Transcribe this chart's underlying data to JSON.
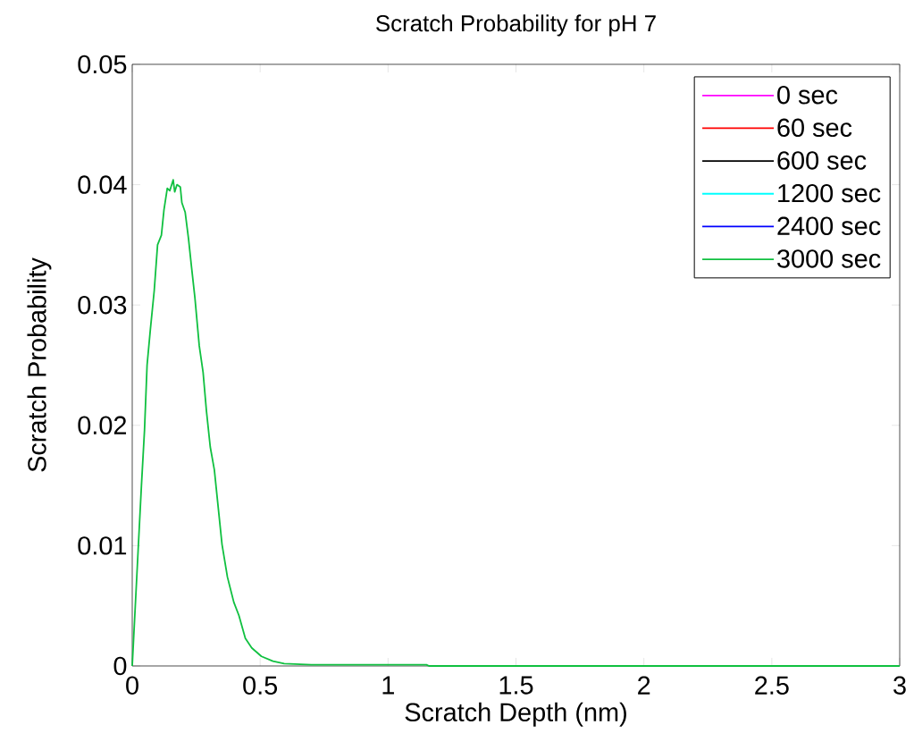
{
  "chart_data": {
    "type": "line",
    "title": "Scratch Probability for pH 7",
    "xlabel": "Scratch Depth (nm)",
    "ylabel": "Scratch Probability",
    "xlim": [
      0,
      3
    ],
    "ylim": [
      0,
      0.05
    ],
    "xticks": [
      0,
      0.5,
      1,
      1.5,
      2,
      2.5,
      3
    ],
    "yticks": [
      0,
      0.01,
      0.02,
      0.03,
      0.04,
      0.05
    ],
    "legend": "top right",
    "grid": false,
    "marker": "none",
    "line_style": "solid",
    "x": [
      0,
      0.023,
      0.036,
      0.048,
      0.058,
      0.071,
      0.086,
      0.099,
      0.114,
      0.124,
      0.137,
      0.147,
      0.16,
      0.166,
      0.175,
      0.188,
      0.194,
      0.207,
      0.22,
      0.232,
      0.245,
      0.262,
      0.277,
      0.29,
      0.305,
      0.321,
      0.334,
      0.351,
      0.372,
      0.397,
      0.417,
      0.442,
      0.467,
      0.505,
      0.55,
      0.594,
      0.7,
      0.9,
      1.15,
      1.16,
      2,
      3
    ],
    "series": [
      {
        "name": "0 sec",
        "color": "#ff00ff",
        "values": [
          null,
          null,
          null,
          null,
          null,
          null,
          null,
          null,
          null,
          null,
          null,
          null,
          null,
          null,
          null,
          null,
          null,
          null,
          null,
          null,
          null,
          null,
          null,
          null,
          null,
          null,
          null,
          null,
          null,
          null,
          null,
          null,
          null,
          null,
          null,
          null,
          null,
          null,
          null,
          null,
          null,
          null
        ]
      },
      {
        "name": "60 sec",
        "color": "#ff0000",
        "values": [
          null,
          null,
          null,
          null,
          null,
          null,
          null,
          null,
          null,
          null,
          null,
          null,
          null,
          null,
          null,
          null,
          null,
          null,
          null,
          null,
          null,
          null,
          null,
          null,
          null,
          null,
          null,
          null,
          null,
          null,
          null,
          null,
          null,
          null,
          null,
          null,
          null,
          null,
          null,
          null,
          null,
          null
        ]
      },
      {
        "name": "600 sec",
        "color": "#000000",
        "values": [
          null,
          null,
          null,
          null,
          null,
          null,
          null,
          null,
          null,
          null,
          null,
          null,
          null,
          null,
          null,
          null,
          null,
          null,
          null,
          null,
          null,
          null,
          null,
          null,
          null,
          null,
          null,
          null,
          null,
          null,
          null,
          null,
          null,
          null,
          null,
          null,
          null,
          null,
          null,
          null,
          null,
          null
        ]
      },
      {
        "name": "1200 sec",
        "color": "#00ffff",
        "values": [
          null,
          null,
          null,
          null,
          null,
          null,
          null,
          null,
          null,
          null,
          null,
          null,
          null,
          null,
          null,
          null,
          null,
          null,
          null,
          null,
          null,
          null,
          null,
          null,
          null,
          null,
          null,
          null,
          null,
          null,
          null,
          null,
          null,
          null,
          null,
          null,
          null,
          null,
          null,
          null,
          null,
          null
        ]
      },
      {
        "name": "2400 sec",
        "color": "#0000ff",
        "values": [
          null,
          null,
          null,
          null,
          null,
          null,
          null,
          null,
          null,
          null,
          null,
          null,
          null,
          null,
          null,
          null,
          null,
          null,
          null,
          null,
          null,
          null,
          null,
          null,
          null,
          null,
          null,
          null,
          null,
          null,
          null,
          null,
          null,
          null,
          null,
          null,
          null,
          null,
          null,
          null,
          null,
          null
        ]
      },
      {
        "name": "3000 sec",
        "color": "#10c040",
        "values": [
          0,
          0.0096,
          0.015,
          0.0196,
          0.025,
          0.028,
          0.0312,
          0.035,
          0.0358,
          0.0379,
          0.0397,
          0.0395,
          0.0404,
          0.0394,
          0.04,
          0.0398,
          0.0385,
          0.0377,
          0.0355,
          0.0331,
          0.0306,
          0.0266,
          0.0244,
          0.0212,
          0.0182,
          0.0163,
          0.0136,
          0.0101,
          0.0074,
          0.0053,
          0.0042,
          0.0023,
          0.0015,
          0.0008,
          0.0004,
          0.0002,
          0.0001,
          0.0001,
          0.0001,
          0,
          0,
          0
        ]
      }
    ]
  }
}
